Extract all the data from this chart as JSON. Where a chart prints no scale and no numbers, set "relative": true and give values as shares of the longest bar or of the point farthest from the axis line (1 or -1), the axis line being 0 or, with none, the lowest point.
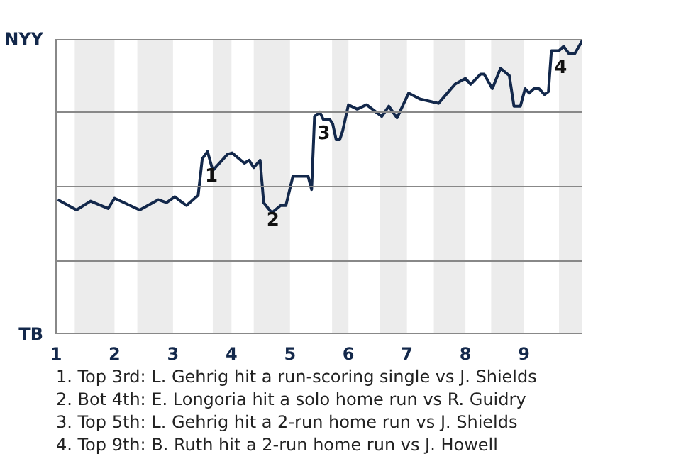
{
  "chart_data": {
    "type": "line",
    "relative": true,
    "x": [
      1.03,
      1.35,
      1.59,
      1.89,
      2.0,
      2.43,
      2.75,
      2.89,
      3.03,
      3.23,
      3.43,
      3.5,
      3.59,
      3.68,
      3.93,
      4.01,
      4.22,
      4.3,
      4.38,
      4.49,
      4.55,
      4.69,
      4.84,
      4.93,
      5.05,
      5.31,
      5.37,
      5.42,
      5.51,
      5.57,
      5.68,
      5.73,
      5.79,
      5.85,
      5.9,
      6.0,
      6.15,
      6.31,
      6.57,
      6.69,
      6.83,
      7.03,
      7.22,
      7.54,
      7.82,
      8.0,
      8.09,
      8.26,
      8.32,
      8.46,
      8.6,
      8.75,
      8.83,
      8.94,
      9.02,
      9.09,
      9.17,
      9.26,
      9.35,
      9.42,
      9.47,
      9.6,
      9.68,
      9.77,
      9.87,
      10.0
    ],
    "series": [
      {
        "color": "#13284b",
        "values": [
          -0.09,
          -0.16,
          -0.1,
          -0.15,
          -0.08,
          -0.16,
          -0.09,
          -0.11,
          -0.07,
          -0.13,
          -0.06,
          0.19,
          0.24,
          0.11,
          0.22,
          0.23,
          0.16,
          0.18,
          0.13,
          0.18,
          -0.11,
          -0.18,
          -0.13,
          -0.13,
          0.07,
          0.07,
          -0.02,
          0.48,
          0.51,
          0.46,
          0.46,
          0.43,
          0.32,
          0.32,
          0.38,
          0.56,
          0.53,
          0.56,
          0.48,
          0.55,
          0.47,
          0.64,
          0.6,
          0.57,
          0.7,
          0.74,
          0.7,
          0.77,
          0.77,
          0.67,
          0.81,
          0.76,
          0.55,
          0.55,
          0.67,
          0.64,
          0.67,
          0.67,
          0.63,
          0.65,
          0.93,
          0.93,
          0.96,
          0.91,
          0.91,
          1.0
        ]
      }
    ],
    "xlim": [
      1,
      10
    ],
    "xticks": [
      1,
      2,
      3,
      4,
      5,
      6,
      7,
      8,
      9
    ],
    "ref_lines": [
      {
        "axis": "y",
        "value": 1.01,
        "label": "NYY",
        "color": "#888888"
      },
      {
        "axis": "y",
        "value": 0.51,
        "color": "#888888"
      },
      {
        "axis": "y",
        "value": 0,
        "color": "#888888"
      },
      {
        "axis": "y",
        "value": -0.51,
        "color": "#888888"
      },
      {
        "axis": "y",
        "value": -1.01,
        "label": "TB",
        "color": "#888888"
      }
    ],
    "bands": [
      {
        "axis": "x",
        "from": 1.32,
        "to": 2,
        "color": "#ececec"
      },
      {
        "axis": "x",
        "from": 2.39,
        "to": 3,
        "color": "#ececec"
      },
      {
        "axis": "x",
        "from": 3.68,
        "to": 4,
        "color": "#ececec"
      },
      {
        "axis": "x",
        "from": 4.38,
        "to": 5,
        "color": "#ececec"
      },
      {
        "axis": "x",
        "from": 5.72,
        "to": 6,
        "color": "#ececec"
      },
      {
        "axis": "x",
        "from": 6.54,
        "to": 7,
        "color": "#ececec"
      },
      {
        "axis": "x",
        "from": 7.46,
        "to": 8,
        "color": "#ececec"
      },
      {
        "axis": "x",
        "from": 8.44,
        "to": 9,
        "color": "#ececec"
      },
      {
        "axis": "x",
        "from": 9.6,
        "to": 10,
        "color": "#ececec"
      }
    ],
    "annotations": [
      {
        "text": "1",
        "x": 3.5,
        "y": 0.19
      },
      {
        "text": "2",
        "x": 4.55,
        "y": -0.11
      },
      {
        "text": "3",
        "x": 5.42,
        "y": 0.48
      },
      {
        "text": "4",
        "x": 9.47,
        "y": 0.93
      },
      "1. Top 3rd: L. Gehrig hit a run-scoring single vs J. Shields",
      "2. Bot 4th: E. Longoria hit a solo home run vs R. Guidry",
      "3. Top 5th: L. Gehrig hit a 2-run home run vs J. Shields",
      "4. Top 9th: B. Ruth hit a 2-run home run vs J. Howell"
    ]
  }
}
